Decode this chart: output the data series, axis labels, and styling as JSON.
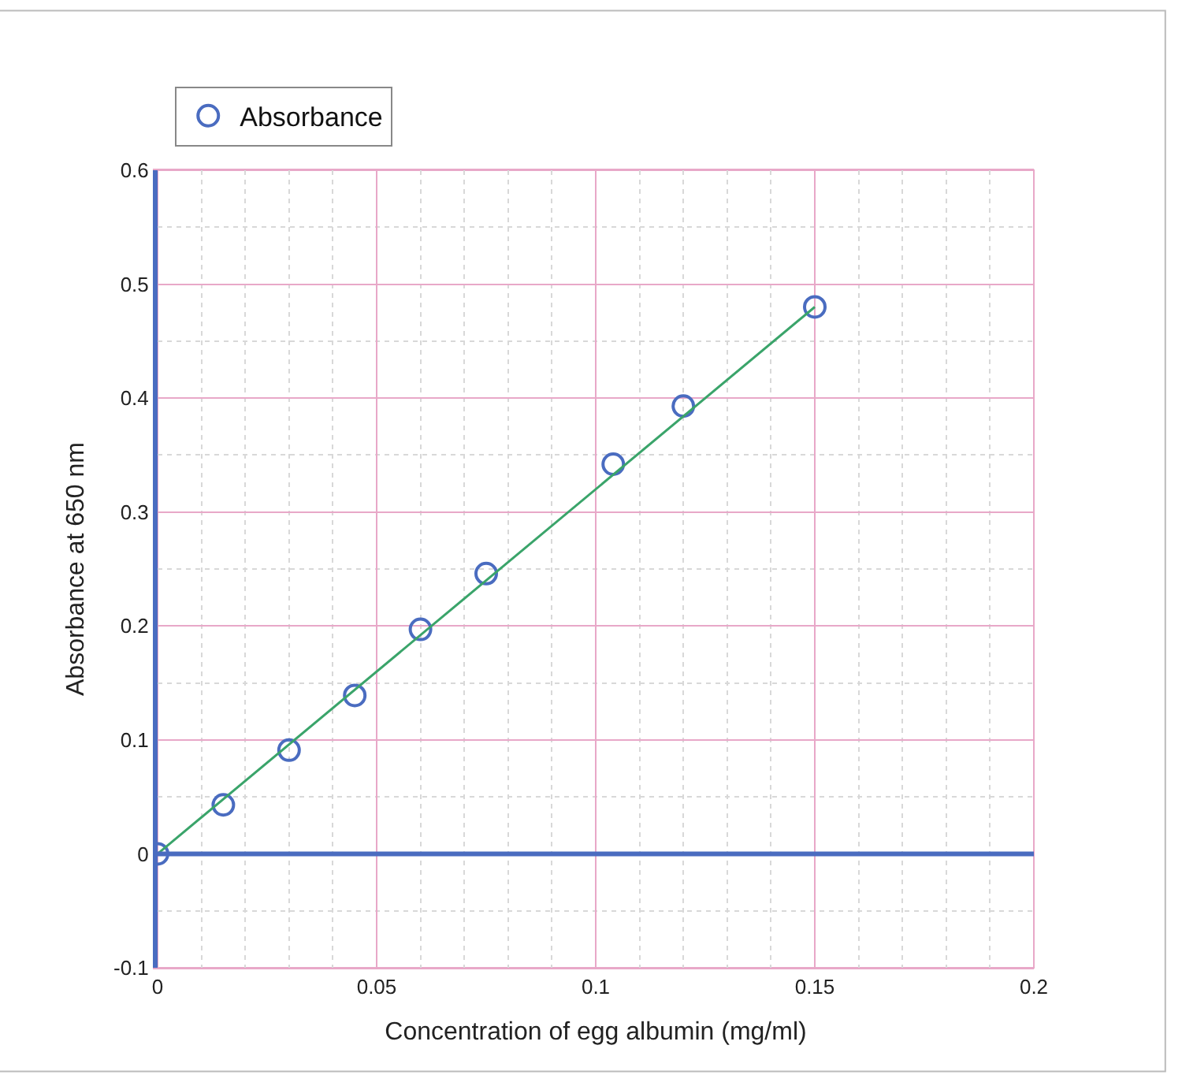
{
  "chart_data": {
    "type": "scatter",
    "xlabel": "Concentration of egg albumin (mg/ml)",
    "ylabel": "Absorbance at 650 nm",
    "series": [
      {
        "name": "Absorbance",
        "color": "#4a6cc0",
        "marker": "circle",
        "x": [
          0,
          0.015,
          0.03,
          0.045,
          0.06,
          0.075,
          0.104,
          0.12,
          0.15
        ],
        "values": [
          0,
          0.043,
          0.091,
          0.139,
          0.197,
          0.246,
          0.342,
          0.393,
          0.48
        ]
      },
      {
        "type": "line",
        "color": "#3aa46a",
        "marker": "none",
        "x": [
          0,
          0.15
        ],
        "values": [
          0,
          0.48
        ]
      }
    ],
    "xlim": [
      0,
      0.2
    ],
    "xticks": [
      0,
      0.05,
      0.1,
      0.15,
      0.2
    ],
    "ylim": [
      -0.1,
      0.6
    ],
    "yticks": [
      -0.1,
      0,
      0.1,
      0.2,
      0.3,
      0.4,
      0.5,
      0.6
    ],
    "ref_lines": [
      {
        "axis": "y",
        "value": 0,
        "color": "#4a6cc0"
      }
    ],
    "grid": true,
    "legend": "top left"
  }
}
